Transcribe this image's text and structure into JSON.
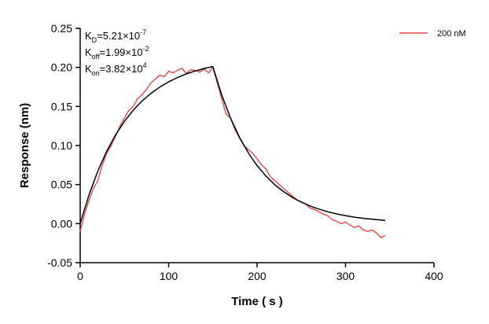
{
  "chart_data": {
    "type": "line",
    "annotations": [
      {
        "main": "K",
        "sub": "D",
        "text": "=5.21×10",
        "sup": "-7"
      },
      {
        "main": "K",
        "sub": "off",
        "text": "=1.99×10",
        "sup": "-2"
      },
      {
        "main": "K",
        "sub": "on",
        "text": "=3.82×10",
        "sup": "4"
      }
    ],
    "x_label": "Time ( s )",
    "y_label": "Response (nm)",
    "xlim": [
      0,
      400
    ],
    "xticks": [
      0,
      100,
      200,
      300,
      400
    ],
    "ylim": [
      -0.05,
      0.25
    ],
    "yticks": [
      -0.05,
      {
        "value": 0,
        "label": "0.00"
      },
      0.05,
      {
        "value": 0.1,
        "label": "0.10"
      },
      0.15,
      {
        "value": 0.2,
        "label": "0.20"
      },
      0.25
    ],
    "legend": "top-right",
    "series": [
      {
        "name": "200 nM",
        "color": "#e8474a",
        "x": [
          0,
          5,
          10,
          15,
          20,
          25,
          30,
          35,
          40,
          45,
          50,
          55,
          60,
          65,
          70,
          75,
          80,
          85,
          90,
          95,
          100,
          105,
          110,
          115,
          120,
          125,
          130,
          135,
          140,
          145,
          150,
          155,
          160,
          165,
          170,
          175,
          180,
          185,
          190,
          195,
          200,
          205,
          210,
          215,
          220,
          225,
          230,
          235,
          240,
          245,
          250,
          255,
          260,
          265,
          270,
          275,
          280,
          285,
          290,
          295,
          300,
          305,
          310,
          315,
          320,
          325,
          330,
          335,
          340,
          345
        ],
        "values": [
          -0.01,
          0.012,
          0.03,
          0.045,
          0.055,
          0.075,
          0.09,
          0.1,
          0.112,
          0.125,
          0.135,
          0.145,
          0.15,
          0.16,
          0.165,
          0.172,
          0.18,
          0.185,
          0.19,
          0.188,
          0.195,
          0.193,
          0.196,
          0.199,
          0.192,
          0.197,
          0.196,
          0.194,
          0.198,
          0.193,
          0.2,
          0.18,
          0.16,
          0.14,
          0.135,
          0.12,
          0.11,
          0.1,
          0.095,
          0.09,
          0.083,
          0.075,
          0.07,
          0.06,
          0.055,
          0.05,
          0.045,
          0.04,
          0.035,
          0.03,
          0.028,
          0.025,
          0.02,
          0.018,
          0.015,
          0.012,
          0.01,
          0.005,
          0.003,
          0,
          0.002,
          -0.002,
          -0.005,
          -0.003,
          -0.008,
          -0.01,
          -0.008,
          -0.012,
          -0.018,
          -0.015
        ]
      },
      {
        "color": "#000000",
        "x": [
          0,
          10,
          20,
          30,
          40,
          50,
          60,
          70,
          80,
          90,
          100,
          110,
          120,
          130,
          140,
          150,
          160,
          170,
          180,
          190,
          200,
          210,
          220,
          230,
          240,
          250,
          260,
          270,
          280,
          290,
          300,
          310,
          320,
          330,
          340,
          345
        ],
        "values": [
          0,
          0.0369,
          0.0674,
          0.0927,
          0.1136,
          0.1308,
          0.1452,
          0.157,
          0.1667,
          0.1748,
          0.1815,
          0.187,
          0.1916,
          0.1953,
          0.1985,
          0.201,
          0.1647,
          0.135,
          0.1107,
          0.0907,
          0.0743,
          0.0609,
          0.0499,
          0.0409,
          0.0335,
          0.0275,
          0.0225,
          0.0185,
          0.0151,
          0.0124,
          0.0102,
          0.0083,
          0.0068,
          0.0056,
          0.0046,
          0.0041
        ]
      }
    ]
  }
}
